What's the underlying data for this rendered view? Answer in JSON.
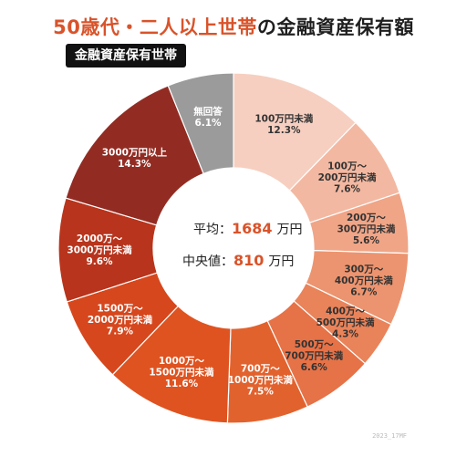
{
  "header": {
    "title_accent": "50歳代・二人以上世帯",
    "title_rest": "の金融資産保有額",
    "badge": "金融資産保有世帯"
  },
  "colors": {
    "accent": "#d9532a",
    "unanswered": "#9b9b9b"
  },
  "chart_data": {
    "type": "pie",
    "donut": true,
    "start": "12 o'clock",
    "direction": "clockwise",
    "slices": [
      {
        "label": [
          "100万円未満"
        ],
        "value": 12.3,
        "value_label": "12.3%",
        "color": "#f6cfc0",
        "text_color": "#333333"
      },
      {
        "label": [
          "100万～",
          "200万円未満"
        ],
        "value": 7.6,
        "value_label": "7.6%",
        "color": "#f3b8a1",
        "text_color": "#333333"
      },
      {
        "label": [
          "200万～",
          "300万円未満"
        ],
        "value": 5.6,
        "value_label": "5.6%",
        "color": "#f0a587",
        "text_color": "#333333"
      },
      {
        "label": [
          "300万～",
          "400万円未満"
        ],
        "value": 6.7,
        "value_label": "6.7%",
        "color": "#ec946f",
        "text_color": "#333333"
      },
      {
        "label": [
          "400万～",
          "500万円未満"
        ],
        "value": 4.3,
        "value_label": "4.3%",
        "color": "#e9835a",
        "text_color": "#333333"
      },
      {
        "label": [
          "500万～",
          "700万円未満"
        ],
        "value": 6.6,
        "value_label": "6.6%",
        "color": "#e67247",
        "text_color": "#333333"
      },
      {
        "label": [
          "700万～",
          "1000万円未満"
        ],
        "value": 7.5,
        "value_label": "7.5%",
        "color": "#e2622e",
        "text_color": "#ffffff"
      },
      {
        "label": [
          "1000万～",
          "1500万円未満"
        ],
        "value": 11.6,
        "value_label": "11.6%",
        "color": "#df5320",
        "text_color": "#ffffff"
      },
      {
        "label": [
          "1500万～",
          "2000万円未満"
        ],
        "value": 7.9,
        "value_label": "7.9%",
        "color": "#d6471d",
        "text_color": "#ffffff"
      },
      {
        "label": [
          "2000万～",
          "3000万円未満"
        ],
        "value": 9.6,
        "value_label": "9.6%",
        "color": "#b8341c",
        "text_color": "#ffffff"
      },
      {
        "label": [
          "3000万円以上"
        ],
        "value": 14.3,
        "value_label": "14.3%",
        "color": "#922c23",
        "text_color": "#ffffff"
      },
      {
        "label": [
          "無回答"
        ],
        "value": 6.1,
        "value_label": "6.1%",
        "color": "#9b9b9b",
        "text_color": "#ffffff"
      }
    ],
    "center": {
      "average_label": "平均：",
      "average_value": "1684",
      "average_unit": "万円",
      "median_label": "中央値：",
      "median_value": "810",
      "median_unit": "万円"
    }
  },
  "footer": {
    "watermark": "2023_17MF"
  }
}
